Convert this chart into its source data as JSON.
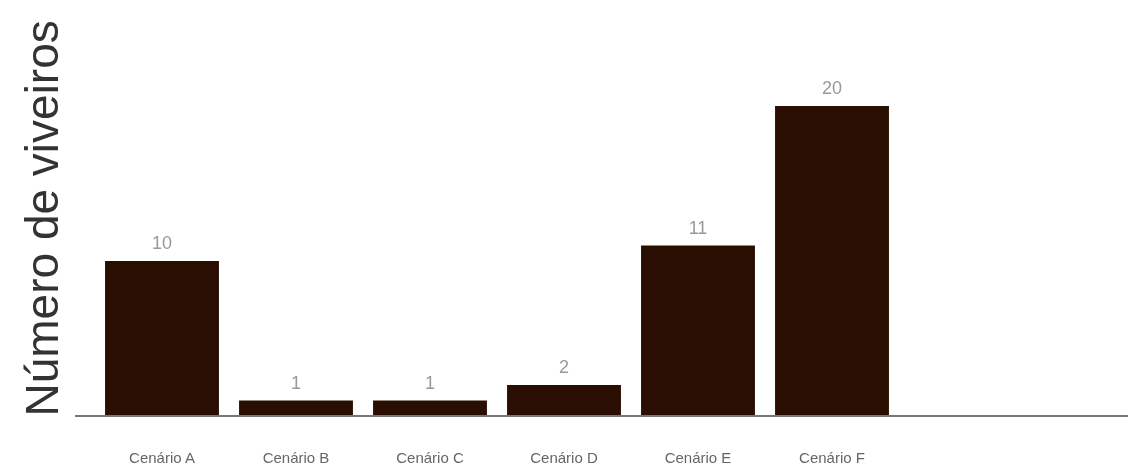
{
  "chart_data": {
    "type": "bar",
    "ylabel": "Número de viveiros",
    "categories": [
      "Cenário A",
      "Cenário B",
      "Cenário C",
      "Cenário D",
      "Cenário E",
      "Cenário F"
    ],
    "values": [
      10,
      1,
      1,
      2,
      11,
      20
    ],
    "color": "#2a0e02",
    "data_labels": true
  }
}
